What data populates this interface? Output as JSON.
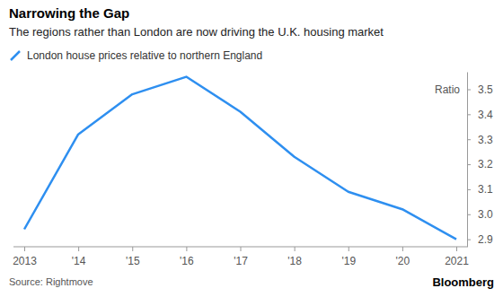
{
  "chart_data": {
    "type": "line",
    "title": "Narrowing the Gap",
    "subtitle": "The regions rather than London are now driving the U.K. housing market",
    "y_label": "Ratio",
    "categories": [
      "2013",
      "'14",
      "'15",
      "'16",
      "'17",
      "'18",
      "'19",
      "'20",
      "2021"
    ],
    "series": [
      {
        "name": "London house prices relative to northern England",
        "color": "#2e8ff0",
        "values": [
          2.94,
          3.32,
          3.48,
          3.55,
          3.41,
          3.23,
          3.09,
          3.02,
          2.9
        ]
      }
    ],
    "ylim": [
      2.87,
      3.57
    ],
    "yticks": [
      {
        "value": 2.9,
        "label": "2.9"
      },
      {
        "value": 3.0,
        "label": "3.0"
      },
      {
        "value": 3.1,
        "label": "3.1"
      },
      {
        "value": 3.2,
        "label": "3.2"
      },
      {
        "value": 3.3,
        "label": "3.3"
      },
      {
        "value": 3.4,
        "label": "3.4"
      },
      {
        "value": 3.5,
        "label": "3.5"
      }
    ],
    "grid": false,
    "source": "Source: Rightmove",
    "credit": "Bloomberg"
  }
}
